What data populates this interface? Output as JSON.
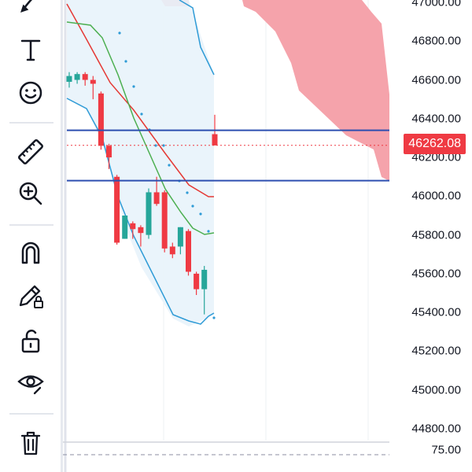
{
  "toolbar": {
    "tools": [
      {
        "name": "brush-tool-button",
        "icon": "brush-icon"
      },
      {
        "name": "text-tool-button",
        "icon": "text-icon"
      },
      {
        "name": "emoji-tool-button",
        "icon": "smiley-icon"
      },
      {
        "name": "measure-tool-button",
        "icon": "ruler-icon"
      },
      {
        "name": "zoom-tool-button",
        "icon": "zoom-in-icon"
      },
      {
        "name": "magnet-tool-button",
        "icon": "magnet-icon"
      },
      {
        "name": "lock-drawings-button",
        "icon": "pencil-lock-icon"
      },
      {
        "name": "unlock-button",
        "icon": "unlock-icon"
      },
      {
        "name": "hide-drawings-button",
        "icon": "eye-icon"
      },
      {
        "name": "delete-button",
        "icon": "trash-icon"
      }
    ]
  },
  "price_axis": {
    "ticks": [
      "47000.00",
      "46800.00",
      "46600.00",
      "46400.00",
      "46200.00",
      "46000.00",
      "45800.00",
      "45600.00",
      "45400.00",
      "45200.00",
      "45000.00",
      "44800.00"
    ],
    "current_price": "46262.08",
    "indicator_tick": "75.00"
  },
  "colors": {
    "up": "#26a69a",
    "down": "#ef3a43",
    "upper_band": "#2f9bd6",
    "middle_band": "#4caf50",
    "red_line": "#e53935",
    "cloud": "#f5a3ab",
    "hline": "#2d4fb0",
    "band_fill": "#e8f3fb"
  },
  "chart_data": {
    "type": "candlestick",
    "ylim": [
      44700,
      47050
    ],
    "candles": [
      {
        "o": 46590,
        "h": 46640,
        "c": 46620,
        "l": 46560
      },
      {
        "o": 46600,
        "h": 46640,
        "c": 46630,
        "l": 46580
      },
      {
        "o": 46630,
        "h": 46640,
        "c": 46600,
        "l": 46570
      },
      {
        "o": 46600,
        "h": 46620,
        "c": 46580,
        "l": 46500
      },
      {
        "o": 46530,
        "h": 46540,
        "c": 46260,
        "l": 46240
      },
      {
        "o": 46260,
        "h": 46270,
        "c": 46200,
        "l": 46140
      },
      {
        "o": 46100,
        "h": 46110,
        "c": 45760,
        "l": 45750
      },
      {
        "o": 45780,
        "h": 45900,
        "c": 45900,
        "l": 45780
      },
      {
        "o": 45860,
        "h": 45870,
        "c": 45830,
        "l": 45780
      },
      {
        "o": 45840,
        "h": 45850,
        "c": 45810,
        "l": 45740
      },
      {
        "o": 45800,
        "h": 46040,
        "c": 46020,
        "l": 45780
      },
      {
        "o": 46020,
        "h": 46100,
        "c": 45960,
        "l": 45950
      },
      {
        "o": 46020,
        "h": 46030,
        "c": 45730,
        "l": 45710
      },
      {
        "o": 45740,
        "h": 45760,
        "c": 45700,
        "l": 45680
      },
      {
        "o": 45740,
        "h": 45840,
        "c": 45840,
        "l": 45700
      },
      {
        "o": 45820,
        "h": 45830,
        "c": 45610,
        "l": 45590
      },
      {
        "o": 45600,
        "h": 45610,
        "c": 45520,
        "l": 45490
      },
      {
        "o": 45520,
        "h": 45640,
        "c": 45620,
        "l": 45390
      },
      {
        "o": 46320,
        "h": 46420,
        "c": 46262,
        "l": 46262
      }
    ],
    "horizontal_lines": [
      46340,
      46080
    ]
  }
}
